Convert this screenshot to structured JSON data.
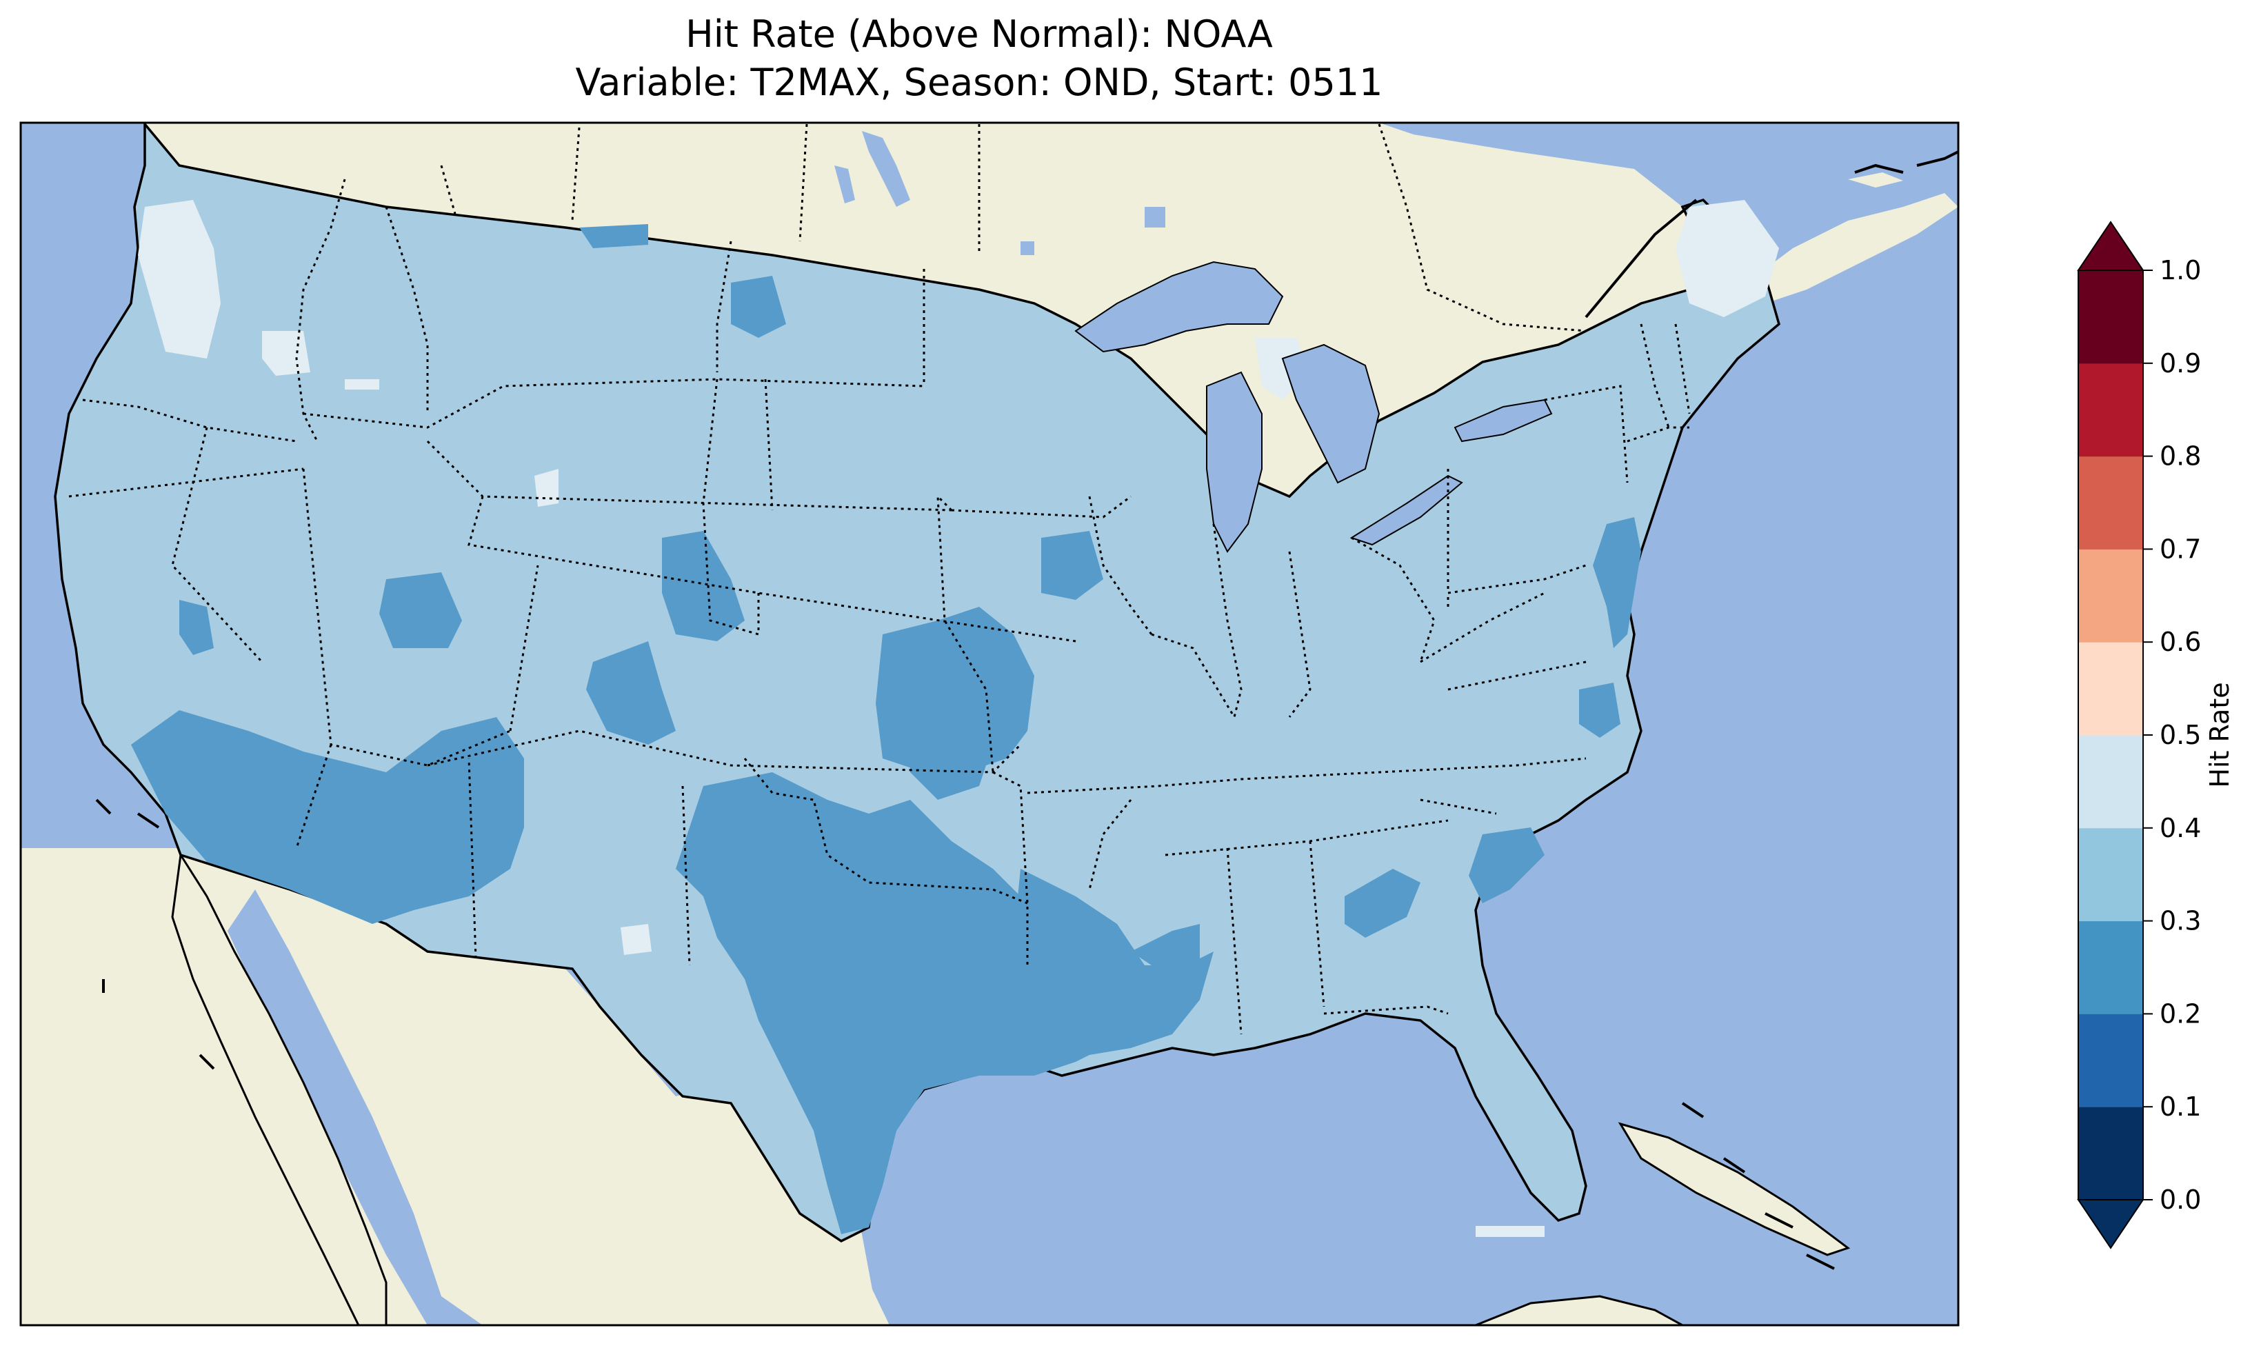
{
  "title": {
    "line1": "Hit Rate (Above Normal): NOAA",
    "line2": "Variable: T2MAX, Season: OND, Start: 0511"
  },
  "map": {
    "region": "Contiguous United States",
    "ocean_color": "#97b6e1",
    "land_color": "#efefdb",
    "border_style": "dotted state borders, solid coastlines"
  },
  "colorbar": {
    "label": "Hit Rate",
    "extend": "both",
    "ticks": [
      "0.0",
      "0.1",
      "0.2",
      "0.3",
      "0.4",
      "0.5",
      "0.6",
      "0.7",
      "0.8",
      "0.9",
      "1.0"
    ],
    "colors": [
      "#053061",
      "#2166ac",
      "#4393c3",
      "#92c5de",
      "#d1e5f0",
      "#fddbc7",
      "#f4a582",
      "#d6604d",
      "#b2182b",
      "#67001f"
    ],
    "under_color": "#053061",
    "over_color": "#67001f"
  },
  "field_levels": [
    {
      "range": "0.2-0.3",
      "color": "#569bc9"
    },
    {
      "range": "0.3-0.4",
      "color": "#a8cde3"
    },
    {
      "range": "0.4-0.5",
      "color": "#e2edf4"
    }
  ]
}
